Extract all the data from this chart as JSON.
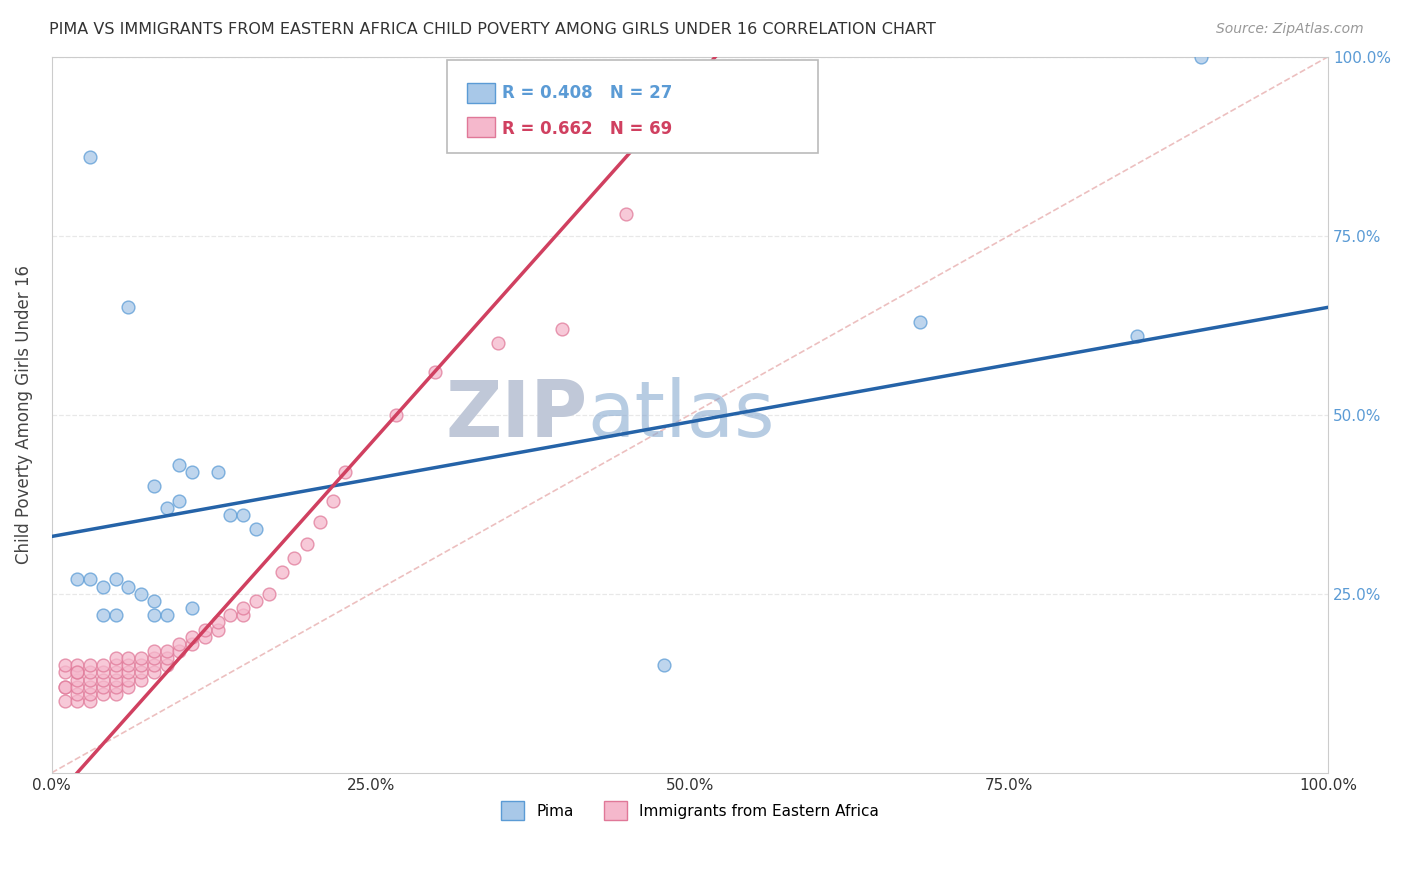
{
  "title": "PIMA VS IMMIGRANTS FROM EASTERN AFRICA CHILD POVERTY AMONG GIRLS UNDER 16 CORRELATION CHART",
  "source": "Source: ZipAtlas.com",
  "ylabel": "Child Poverty Among Girls Under 16",
  "xlim": [
    0,
    1
  ],
  "ylim": [
    0,
    1
  ],
  "xtick_labels": [
    "0.0%",
    "",
    "",
    "",
    "",
    "25.0%",
    "",
    "",
    "",
    "",
    "50.0%",
    "",
    "",
    "",
    "",
    "75.0%",
    "",
    "",
    "",
    "",
    "100.0%"
  ],
  "xtick_vals": [
    0,
    0.05,
    0.1,
    0.15,
    0.2,
    0.25,
    0.3,
    0.35,
    0.4,
    0.45,
    0.5,
    0.55,
    0.6,
    0.65,
    0.7,
    0.75,
    0.8,
    0.85,
    0.9,
    0.95,
    1.0
  ],
  "ytick_right_labels": [
    "",
    "25.0%",
    "50.0%",
    "75.0%",
    "100.0%"
  ],
  "ytick_vals": [
    0,
    0.25,
    0.5,
    0.75,
    1.0
  ],
  "pima_color": "#a8c8e8",
  "immigrants_color": "#f5b8cc",
  "pima_edge_color": "#5b9bd5",
  "immigrants_edge_color": "#e07898",
  "trend_blue": "#2563a8",
  "trend_pink": "#d04060",
  "ref_line_color": "#e8b0b0",
  "watermark_color": "#c8d8ec",
  "R_pima": 0.408,
  "N_pima": 27,
  "R_immigrants": 0.662,
  "N_immigrants": 69,
  "pima_x": [
    0.03,
    0.06,
    0.08,
    0.09,
    0.1,
    0.1,
    0.11,
    0.13,
    0.14,
    0.15,
    0.16,
    0.02,
    0.03,
    0.04,
    0.04,
    0.05,
    0.05,
    0.06,
    0.07,
    0.08,
    0.08,
    0.09,
    0.11,
    0.48,
    0.68,
    0.85,
    0.9
  ],
  "pima_y": [
    0.86,
    0.65,
    0.4,
    0.37,
    0.43,
    0.38,
    0.42,
    0.42,
    0.36,
    0.36,
    0.34,
    0.27,
    0.27,
    0.26,
    0.22,
    0.27,
    0.22,
    0.26,
    0.25,
    0.24,
    0.22,
    0.22,
    0.23,
    0.15,
    0.63,
    0.61,
    1.0
  ],
  "immigrants_x": [
    0.01,
    0.01,
    0.01,
    0.01,
    0.01,
    0.02,
    0.02,
    0.02,
    0.02,
    0.02,
    0.02,
    0.02,
    0.03,
    0.03,
    0.03,
    0.03,
    0.03,
    0.03,
    0.04,
    0.04,
    0.04,
    0.04,
    0.04,
    0.05,
    0.05,
    0.05,
    0.05,
    0.05,
    0.05,
    0.06,
    0.06,
    0.06,
    0.06,
    0.06,
    0.07,
    0.07,
    0.07,
    0.07,
    0.08,
    0.08,
    0.08,
    0.08,
    0.09,
    0.09,
    0.09,
    0.1,
    0.1,
    0.11,
    0.11,
    0.12,
    0.12,
    0.13,
    0.13,
    0.14,
    0.15,
    0.15,
    0.16,
    0.17,
    0.18,
    0.19,
    0.2,
    0.21,
    0.22,
    0.23,
    0.27,
    0.3,
    0.35,
    0.4,
    0.45
  ],
  "immigrants_y": [
    0.1,
    0.12,
    0.14,
    0.15,
    0.12,
    0.1,
    0.11,
    0.12,
    0.13,
    0.14,
    0.15,
    0.14,
    0.1,
    0.11,
    0.12,
    0.13,
    0.14,
    0.15,
    0.11,
    0.12,
    0.13,
    0.14,
    0.15,
    0.11,
    0.12,
    0.13,
    0.14,
    0.15,
    0.16,
    0.12,
    0.13,
    0.14,
    0.15,
    0.16,
    0.13,
    0.14,
    0.15,
    0.16,
    0.14,
    0.15,
    0.16,
    0.17,
    0.15,
    0.16,
    0.17,
    0.17,
    0.18,
    0.18,
    0.19,
    0.19,
    0.2,
    0.2,
    0.21,
    0.22,
    0.22,
    0.23,
    0.24,
    0.25,
    0.28,
    0.3,
    0.32,
    0.35,
    0.38,
    0.42,
    0.5,
    0.56,
    0.6,
    0.62,
    0.78
  ],
  "background_color": "#ffffff",
  "grid_color": "#e8e8e8",
  "marker_size": 85,
  "legend_box_color_pima": "#a8c8e8",
  "legend_box_color_immigrants": "#f5b8cc",
  "blue_intercept": 0.33,
  "blue_slope": 0.32,
  "pink_intercept": -0.04,
  "pink_slope": 2.0
}
